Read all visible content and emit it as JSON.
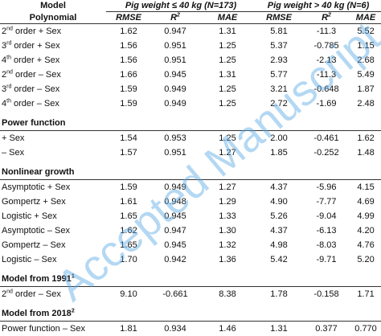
{
  "header": {
    "model": "Model",
    "groups": [
      "Pig weight ≤ 40 kg (N=173)",
      "Pig weight > 40 kg (N=6)"
    ],
    "metrics": [
      [
        "RMSE"
      ],
      [
        "R",
        "2"
      ],
      [
        "MAE"
      ],
      [
        "RMSE"
      ],
      [
        "R",
        "2"
      ],
      [
        "MAE"
      ]
    ]
  },
  "sections": [
    {
      "title": [
        "Polynomial"
      ],
      "rows": [
        {
          "label": [
            "2",
            "nd",
            " order + Sex"
          ],
          "cells": [
            "1.62",
            "0.947",
            "1.31",
            "5.81",
            "-11.3",
            "5.52"
          ]
        },
        {
          "label": [
            "3",
            "rd",
            " order + Sex"
          ],
          "cells": [
            "1.56",
            "0.951",
            "1.25",
            "5.37",
            "-0.785",
            "1.15"
          ]
        },
        {
          "label": [
            "4",
            "th",
            " order + Sex"
          ],
          "cells": [
            "1.56",
            "0.951",
            "1.25",
            "2.93",
            "-2.13",
            "2.68"
          ]
        },
        {
          "label": [
            "2",
            "nd",
            " order – Sex"
          ],
          "cells": [
            "1.66",
            "0.945",
            "1.31",
            "5.77",
            "-11.3",
            "5.49"
          ]
        },
        {
          "label": [
            "3",
            "rd",
            " order – Sex"
          ],
          "cells": [
            "1.59",
            "0.949",
            "1.25",
            "3.21",
            "-0.648",
            "1.87"
          ]
        },
        {
          "label": [
            "4",
            "th",
            " order – Sex"
          ],
          "cells": [
            "1.59",
            "0.949",
            "1.25",
            "2.72",
            "-1.69",
            "2.48"
          ]
        }
      ]
    },
    {
      "title": [
        "Power function"
      ],
      "rows": [
        {
          "label": [
            "+ Sex"
          ],
          "cells": [
            "1.54",
            "0.953",
            "1.25",
            "2.00",
            "-0.461",
            "1.62"
          ]
        },
        {
          "label": [
            "– Sex"
          ],
          "cells": [
            "1.57",
            "0.951",
            "1.27",
            "1.85",
            "-0.252",
            "1.48"
          ]
        }
      ]
    },
    {
      "title": [
        "Nonlinear growth"
      ],
      "rows": [
        {
          "label": [
            "Asymptotic + Sex"
          ],
          "cells": [
            "1.59",
            "0.949",
            "1.27",
            "4.37",
            "-5.96",
            "4.15"
          ]
        },
        {
          "label": [
            "Gompertz + Sex"
          ],
          "cells": [
            "1.61",
            "0.948",
            "1.29",
            "4.90",
            "-7.77",
            "4.69"
          ]
        },
        {
          "label": [
            "Logistic + Sex"
          ],
          "cells": [
            "1.65",
            "0.945",
            "1.33",
            "5.26",
            "-9.04",
            "4.99"
          ]
        },
        {
          "label": [
            "Asymptotic – Sex"
          ],
          "cells": [
            "1.62",
            "0.947",
            "1.30",
            "4.37",
            "-6.13",
            "4.20"
          ]
        },
        {
          "label": [
            "Gompertz – Sex"
          ],
          "cells": [
            "1.65",
            "0.945",
            "1.32",
            "4.98",
            "-8.03",
            "4.76"
          ]
        },
        {
          "label": [
            "Logistic – Sex"
          ],
          "cells": [
            "1.70",
            "0.942",
            "1.36",
            "5.42",
            "-9.71",
            "5.20"
          ]
        }
      ]
    },
    {
      "title": [
        "Model from 1991",
        "1"
      ],
      "rows": [
        {
          "label": [
            "2",
            "nd",
            " order – Sex"
          ],
          "cells": [
            "9.10",
            "-0.661",
            "8.38",
            "1.78",
            "-0.158",
            "1.71"
          ]
        }
      ]
    },
    {
      "title": [
        "Model from 2018",
        "2"
      ],
      "rows": [
        {
          "label": [
            "Power function – Sex"
          ],
          "cells": [
            "1.81",
            "0.934",
            "1.46",
            "1.31",
            "0.377",
            "0.770"
          ]
        }
      ]
    }
  ],
  "watermark": "Accepted Manuscript"
}
